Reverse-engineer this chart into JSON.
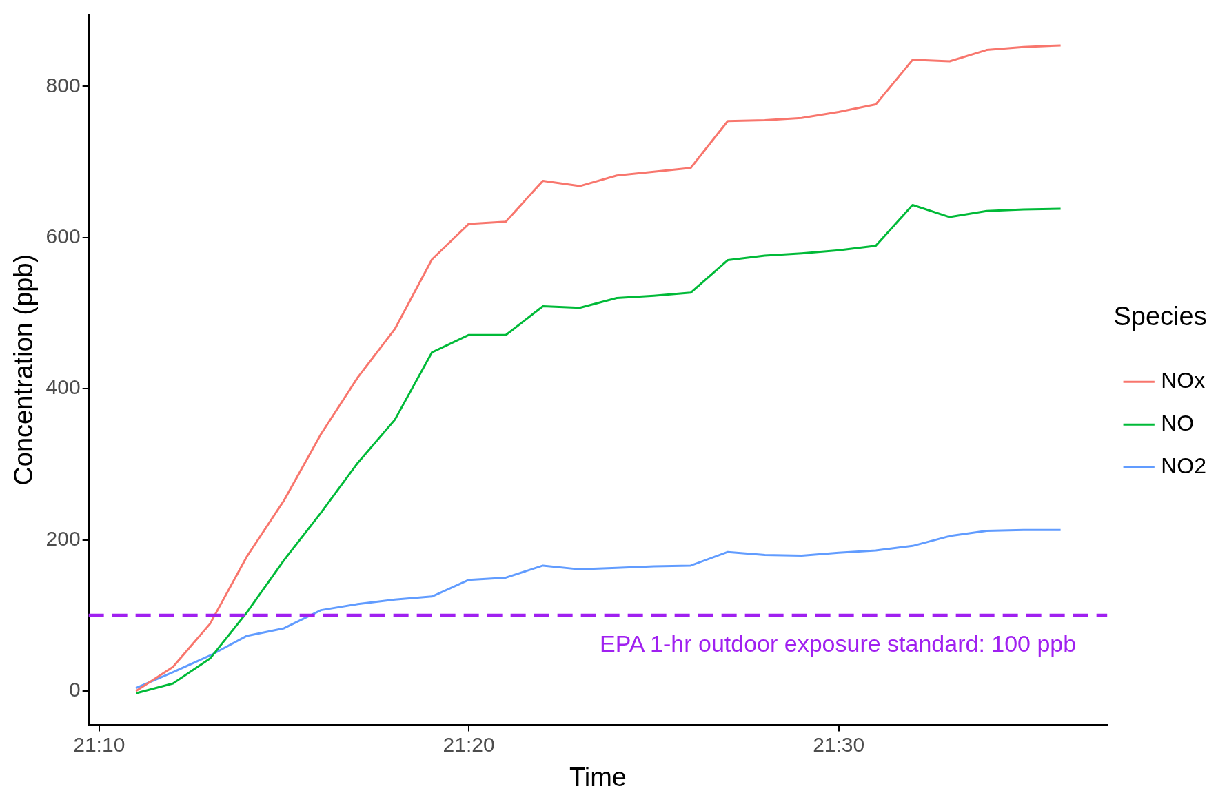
{
  "chart_data": {
    "type": "line",
    "xlabel": "Time",
    "ylabel": "Concentration (ppb)",
    "legend_title": "Species",
    "legend": "right",
    "grid": false,
    "line_style": "solid",
    "marker": "none",
    "x": [
      21.1833,
      21.2,
      21.2167,
      21.2333,
      21.25,
      21.2667,
      21.2833,
      21.3,
      21.3167,
      21.3333,
      21.35,
      21.3667,
      21.3833,
      21.4,
      21.4167,
      21.4333,
      21.45,
      21.4667,
      21.4833,
      21.5,
      21.5167,
      21.5333,
      21.55,
      21.5667,
      21.5833,
      21.6
    ],
    "xlim": [
      21.162,
      21.621
    ],
    "xticks": [
      {
        "value": 21.1667,
        "label": "21:10"
      },
      {
        "value": 21.3333,
        "label": "21:20"
      },
      {
        "value": 21.5,
        "label": "21:30"
      }
    ],
    "ylim": [
      -45,
      895
    ],
    "yticks": [
      0,
      200,
      400,
      600,
      800
    ],
    "series": [
      {
        "name": "NOx",
        "color": "#f8766d",
        "values": [
          0,
          32,
          89,
          178,
          252,
          340,
          415,
          479,
          571,
          618,
          621,
          675,
          668,
          682,
          687,
          692,
          754,
          755,
          758,
          766,
          776,
          835,
          833,
          848,
          852,
          854
        ]
      },
      {
        "name": "NO",
        "color": "#00ba38",
        "values": [
          -3,
          10,
          43,
          104,
          173,
          236,
          302,
          359,
          448,
          471,
          471,
          509,
          507,
          520,
          523,
          527,
          570,
          576,
          579,
          583,
          589,
          643,
          627,
          635,
          637,
          638
        ]
      },
      {
        "name": "NO2",
        "color": "#619cff",
        "values": [
          4,
          25,
          47,
          73,
          83,
          107,
          115,
          121,
          125,
          147,
          150,
          166,
          161,
          163,
          165,
          166,
          184,
          180,
          179,
          183,
          186,
          192,
          205,
          212,
          213,
          213
        ]
      }
    ],
    "ref_lines": [
      {
        "axis": "y",
        "value": 100,
        "label": "EPA 1-hr outdoor exposure standard: 100 ppb",
        "color": "#a020f0",
        "line_style": "dashed"
      }
    ]
  }
}
